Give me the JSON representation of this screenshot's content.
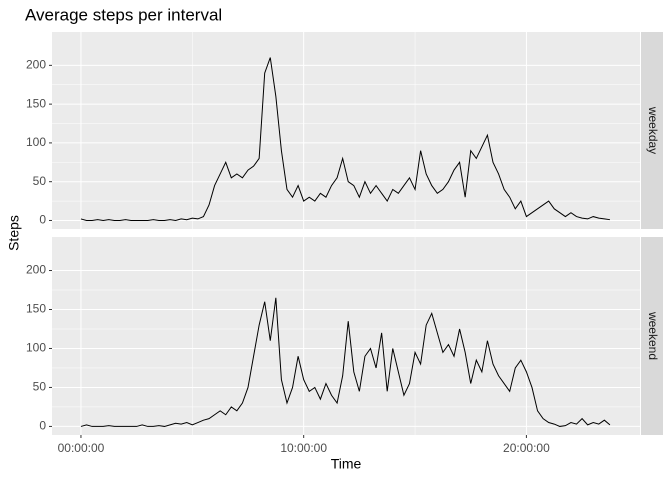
{
  "chart_data": {
    "type": "line",
    "title": "Average steps per interval",
    "xlabel": "Time",
    "ylabel": "Steps",
    "x": [
      0,
      0.25,
      0.5,
      0.75,
      1,
      1.25,
      1.5,
      1.75,
      2,
      2.25,
      2.5,
      2.75,
      3,
      3.25,
      3.5,
      3.75,
      4,
      4.25,
      4.5,
      4.75,
      5,
      5.25,
      5.5,
      5.75,
      6,
      6.25,
      6.5,
      6.75,
      7,
      7.25,
      7.5,
      7.75,
      8,
      8.25,
      8.5,
      8.75,
      9,
      9.25,
      9.5,
      9.75,
      10,
      10.25,
      10.5,
      10.75,
      11,
      11.25,
      11.5,
      11.75,
      12,
      12.25,
      12.5,
      12.75,
      13,
      13.25,
      13.5,
      13.75,
      14,
      14.25,
      14.5,
      14.75,
      15,
      15.25,
      15.5,
      15.75,
      16,
      16.25,
      16.5,
      16.75,
      17,
      17.25,
      17.5,
      17.75,
      18,
      18.25,
      18.5,
      18.75,
      19,
      19.25,
      19.5,
      19.75,
      20,
      20.25,
      20.5,
      20.75,
      21,
      21.25,
      21.5,
      21.75,
      22,
      22.25,
      22.5,
      22.75,
      23,
      23.25,
      23.5,
      23.75
    ],
    "series": [
      {
        "name": "weekday",
        "color": "#000000",
        "values": [
          2,
          0,
          0,
          1,
          0,
          1,
          0,
          0,
          1,
          0,
          0,
          0,
          0,
          1,
          0,
          0,
          1,
          0,
          2,
          1,
          3,
          2,
          5,
          20,
          45,
          60,
          75,
          55,
          60,
          55,
          65,
          70,
          80,
          190,
          210,
          160,
          90,
          40,
          30,
          45,
          25,
          30,
          25,
          35,
          30,
          45,
          55,
          80,
          50,
          45,
          30,
          50,
          35,
          45,
          35,
          25,
          40,
          35,
          45,
          55,
          40,
          90,
          60,
          45,
          35,
          40,
          50,
          65,
          75,
          30,
          90,
          80,
          95,
          110,
          75,
          60,
          40,
          30,
          15,
          25,
          5,
          10,
          15,
          20,
          25,
          15,
          10,
          5,
          10,
          5,
          3,
          2,
          5,
          3,
          2,
          1
        ]
      },
      {
        "name": "weekend",
        "color": "#000000",
        "values": [
          0,
          2,
          0,
          0,
          0,
          1,
          0,
          0,
          0,
          0,
          0,
          2,
          0,
          0,
          1,
          0,
          2,
          4,
          3,
          5,
          2,
          5,
          8,
          10,
          15,
          20,
          15,
          25,
          20,
          30,
          50,
          90,
          130,
          160,
          110,
          165,
          60,
          30,
          50,
          90,
          60,
          45,
          50,
          35,
          55,
          40,
          30,
          65,
          135,
          70,
          45,
          90,
          100,
          75,
          120,
          45,
          100,
          70,
          40,
          55,
          95,
          80,
          130,
          145,
          120,
          95,
          105,
          90,
          125,
          95,
          55,
          85,
          70,
          110,
          80,
          65,
          55,
          45,
          75,
          85,
          70,
          50,
          20,
          10,
          5,
          3,
          0,
          1,
          5,
          3,
          10,
          2,
          5,
          3,
          8,
          2
        ]
      }
    ],
    "xlim": [
      -1.3,
      25.1
    ],
    "xticks": [
      {
        "value": 0,
        "label": "00:00:00"
      },
      {
        "value": 10,
        "label": "10:00:00"
      },
      {
        "value": 20,
        "label": "20:00:00"
      }
    ],
    "ylim": [
      -11,
      243
    ],
    "yticks": [
      0,
      50,
      100,
      150,
      200
    ],
    "grid": true
  }
}
